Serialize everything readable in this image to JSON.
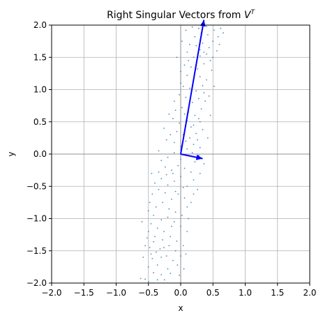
{
  "chart_data": {
    "type": "scatter",
    "title_main": "Right Singular Vectors from ",
    "title_math_base": "V",
    "title_math_sup": "T",
    "xlabel": "x",
    "ylabel": "y",
    "xlim": [
      -2,
      2
    ],
    "ylim": [
      -2,
      2
    ],
    "xticks": [
      -2.0,
      -1.5,
      -1.0,
      -0.5,
      0.0,
      0.5,
      1.0,
      1.5,
      2.0
    ],
    "yticks": [
      -2.0,
      -1.5,
      -1.0,
      -0.5,
      0.0,
      0.5,
      1.0,
      1.5,
      2.0
    ],
    "grid": true,
    "colors": {
      "points": "#1f77b4",
      "vectors": "#0000ff",
      "grid": "#b0b0b0",
      "axis_lines": "#808080"
    },
    "vectors": [
      {
        "x0": 0,
        "y0": 0,
        "x1": 0.36,
        "y1": 2.08
      },
      {
        "x0": 0,
        "y0": 0,
        "x1": 0.34,
        "y1": -0.07
      }
    ],
    "points": [
      [
        -0.62,
        -1.93
      ],
      [
        -0.55,
        -1.94
      ],
      [
        -0.5,
        -1.98
      ],
      [
        -0.42,
        -1.84
      ],
      [
        -0.5,
        -1.75
      ],
      [
        -0.44,
        -1.62
      ],
      [
        -0.36,
        -1.72
      ],
      [
        -0.3,
        -1.87
      ],
      [
        -0.25,
        -1.95
      ],
      [
        -0.2,
        -1.78
      ],
      [
        -0.16,
        -1.85
      ],
      [
        -0.3,
        -1.6
      ],
      [
        -0.38,
        -1.52
      ],
      [
        -0.48,
        -1.45
      ],
      [
        -0.55,
        -1.42
      ],
      [
        -0.42,
        -1.36
      ],
      [
        -0.32,
        -1.47
      ],
      [
        -0.22,
        -1.58
      ],
      [
        -0.12,
        -1.65
      ],
      [
        -0.05,
        -1.72
      ],
      [
        0.05,
        -1.78
      ],
      [
        0.0,
        -1.58
      ],
      [
        -0.08,
        -1.5
      ],
      [
        -0.18,
        -1.42
      ],
      [
        -0.28,
        -1.33
      ],
      [
        -0.4,
        -1.28
      ],
      [
        -0.5,
        -1.2
      ],
      [
        -0.46,
        -1.08
      ],
      [
        -0.36,
        -1.15
      ],
      [
        -0.26,
        -1.2
      ],
      [
        -0.16,
        -1.28
      ],
      [
        -0.06,
        -1.35
      ],
      [
        0.04,
        -1.42
      ],
      [
        0.1,
        -1.2
      ],
      [
        0.0,
        -1.12
      ],
      [
        -0.1,
        -1.05
      ],
      [
        -0.2,
        -0.98
      ],
      [
        -0.3,
        -1.02
      ],
      [
        -0.42,
        -0.95
      ],
      [
        -0.5,
        -0.88
      ],
      [
        -0.38,
        -0.82
      ],
      [
        -0.28,
        -0.75
      ],
      [
        -0.18,
        -0.85
      ],
      [
        -0.08,
        -0.9
      ],
      [
        0.02,
        -0.95
      ],
      [
        0.1,
        -0.82
      ],
      [
        0.16,
        -0.75
      ],
      [
        0.06,
        -0.68
      ],
      [
        -0.04,
        -0.62
      ],
      [
        -0.14,
        -0.7
      ],
      [
        -0.24,
        -0.6
      ],
      [
        -0.34,
        -0.55
      ],
      [
        -0.44,
        -0.62
      ],
      [
        -0.4,
        -0.45
      ],
      [
        -0.3,
        -0.38
      ],
      [
        -0.2,
        -0.48
      ],
      [
        -0.1,
        -0.42
      ],
      [
        0.0,
        -0.35
      ],
      [
        0.1,
        -0.5
      ],
      [
        0.2,
        -0.4
      ],
      [
        0.16,
        -0.28
      ],
      [
        0.06,
        -0.22
      ],
      [
        -0.04,
        -0.18
      ],
      [
        -0.14,
        -0.25
      ],
      [
        -0.24,
        -0.2
      ],
      [
        -0.34,
        -0.28
      ],
      [
        -0.3,
        -0.1
      ],
      [
        -0.2,
        -0.05
      ],
      [
        -0.1,
        0.02
      ],
      [
        0.0,
        -0.08
      ],
      [
        0.12,
        -0.02
      ],
      [
        0.22,
        -0.12
      ],
      [
        0.28,
        -0.02
      ],
      [
        0.3,
        0.1
      ],
      [
        0.2,
        0.15
      ],
      [
        0.1,
        0.08
      ],
      [
        0.0,
        0.12
      ],
      [
        -0.1,
        0.18
      ],
      [
        -0.22,
        0.22
      ],
      [
        -0.16,
        0.3
      ],
      [
        -0.06,
        0.35
      ],
      [
        0.04,
        0.3
      ],
      [
        0.14,
        0.25
      ],
      [
        0.24,
        0.32
      ],
      [
        0.34,
        0.38
      ],
      [
        0.3,
        0.5
      ],
      [
        0.2,
        0.45
      ],
      [
        0.1,
        0.52
      ],
      [
        -0.02,
        0.48
      ],
      [
        -0.12,
        0.55
      ],
      [
        -0.08,
        0.68
      ],
      [
        0.02,
        0.72
      ],
      [
        0.12,
        0.65
      ],
      [
        0.22,
        0.6
      ],
      [
        0.32,
        0.7
      ],
      [
        0.38,
        0.82
      ],
      [
        0.28,
        0.86
      ],
      [
        0.18,
        0.8
      ],
      [
        0.08,
        0.88
      ],
      [
        -0.02,
        0.92
      ],
      [
        0.04,
        1.05
      ],
      [
        0.14,
        1.02
      ],
      [
        0.24,
        0.98
      ],
      [
        0.34,
        1.06
      ],
      [
        0.4,
        1.15
      ],
      [
        0.3,
        1.2
      ],
      [
        0.2,
        1.15
      ],
      [
        0.1,
        1.22
      ],
      [
        0.0,
        1.28
      ],
      [
        0.06,
        1.38
      ],
      [
        0.16,
        1.35
      ],
      [
        0.26,
        1.32
      ],
      [
        0.36,
        1.4
      ],
      [
        0.46,
        1.45
      ],
      [
        0.4,
        1.55
      ],
      [
        0.3,
        1.52
      ],
      [
        0.2,
        1.5
      ],
      [
        0.1,
        1.58
      ],
      [
        0.14,
        1.7
      ],
      [
        0.24,
        1.68
      ],
      [
        0.34,
        1.72
      ],
      [
        0.44,
        1.65
      ],
      [
        0.5,
        1.75
      ],
      [
        0.42,
        1.85
      ],
      [
        0.32,
        1.88
      ],
      [
        0.22,
        1.82
      ],
      [
        0.28,
        1.95
      ],
      [
        0.4,
        1.98
      ],
      [
        0.52,
        1.92
      ],
      [
        0.58,
        1.82
      ],
      [
        0.62,
        1.95
      ],
      [
        0.66,
        1.88
      ],
      [
        0.6,
        1.7
      ],
      [
        0.56,
        1.6
      ],
      [
        0.48,
        1.3
      ],
      [
        0.52,
        1.05
      ],
      [
        0.44,
        0.9
      ],
      [
        0.46,
        0.6
      ],
      [
        0.42,
        0.25
      ],
      [
        0.36,
        -0.15
      ],
      [
        -0.45,
        -0.3
      ],
      [
        -0.48,
        -0.75
      ],
      [
        -0.52,
        -1.3
      ],
      [
        -0.58,
        -1.6
      ],
      [
        -0.6,
        -1.05
      ],
      [
        0.26,
        -0.55
      ],
      [
        0.3,
        -0.3
      ],
      [
        -0.02,
        -1.88
      ],
      [
        0.08,
        -1.55
      ],
      [
        -0.34,
        0.05
      ],
      [
        -0.26,
        0.4
      ],
      [
        -0.18,
        0.62
      ],
      [
        -0.1,
        0.82
      ],
      [
        0.0,
        1.1
      ],
      [
        -0.06,
        1.5
      ],
      [
        0.02,
        1.75
      ],
      [
        0.08,
        1.92
      ],
      [
        0.18,
        1.97
      ],
      [
        0.36,
        1.58
      ],
      [
        0.5,
        1.5
      ],
      [
        -0.12,
        -0.3
      ],
      [
        -0.22,
        -0.32
      ],
      [
        -0.08,
        -0.58
      ],
      [
        0.04,
        -0.52
      ],
      [
        -0.14,
        -1.12
      ],
      [
        -0.26,
        -1.45
      ],
      [
        -0.36,
        -1.95
      ],
      [
        -0.46,
        -1.55
      ],
      [
        0.12,
        -1.0
      ],
      [
        0.2,
        -0.62
      ],
      [
        0.08,
        0.2
      ],
      [
        0.18,
        0.02
      ],
      [
        0.26,
        0.22
      ],
      [
        0.16,
        0.42
      ],
      [
        0.06,
        0.62
      ],
      [
        0.28,
        0.55
      ],
      [
        0.36,
        0.95
      ],
      [
        0.22,
        1.28
      ],
      [
        0.12,
        1.45
      ],
      [
        0.3,
        1.62
      ]
    ]
  }
}
